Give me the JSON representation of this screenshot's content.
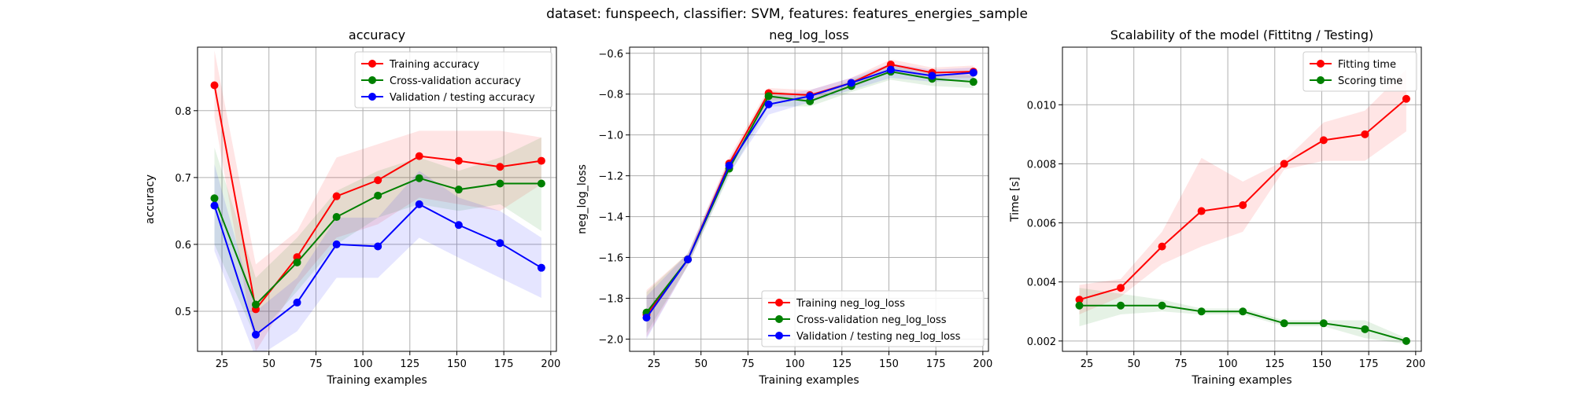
{
  "suptitle": "dataset: funspeech, classifier: SVM, features: features_energies_sample",
  "chart_data": [
    {
      "type": "line",
      "title": "accuracy",
      "xlabel": "Training examples",
      "ylabel": "accuracy",
      "xlim": [
        12,
        203
      ],
      "ylim": [
        0.44,
        0.895
      ],
      "xticks": [
        25,
        50,
        75,
        100,
        125,
        150,
        175,
        200
      ],
      "xtick_labels": [
        "25",
        "50",
        "75",
        "100",
        "125",
        "150",
        "175",
        "200"
      ],
      "yticks": [
        0.5,
        0.6,
        0.7,
        0.8
      ],
      "ytick_labels": [
        "0.5",
        "0.6",
        "0.7",
        "0.8"
      ],
      "grid": true,
      "legend_position": "upper-right",
      "x": [
        21,
        43,
        65,
        86,
        108,
        130,
        151,
        173,
        195
      ],
      "series": [
        {
          "name": "Training accuracy",
          "color": "#ff0000",
          "values": [
            0.838,
            0.503,
            0.581,
            0.672,
            0.696,
            0.732,
            0.725,
            0.716,
            0.725
          ],
          "lower": [
            0.79,
            0.44,
            0.54,
            0.61,
            0.63,
            0.67,
            0.66,
            0.65,
            0.69
          ],
          "upper": [
            0.89,
            0.57,
            0.62,
            0.73,
            0.75,
            0.77,
            0.77,
            0.77,
            0.76
          ]
        },
        {
          "name": "Cross-validation accuracy",
          "color": "#008000",
          "values": [
            0.669,
            0.51,
            0.573,
            0.641,
            0.673,
            0.699,
            0.682,
            0.691,
            0.691
          ],
          "lower": [
            0.6,
            0.46,
            0.53,
            0.6,
            0.64,
            0.66,
            0.65,
            0.66,
            0.62
          ],
          "upper": [
            0.745,
            0.55,
            0.61,
            0.68,
            0.71,
            0.73,
            0.71,
            0.73,
            0.76
          ]
        },
        {
          "name": "Validation / testing accuracy",
          "color": "#0000ff",
          "values": [
            0.658,
            0.465,
            0.513,
            0.6,
            0.597,
            0.66,
            0.629,
            0.602,
            0.565
          ],
          "lower": [
            0.59,
            0.43,
            0.47,
            0.55,
            0.55,
            0.61,
            0.58,
            0.55,
            0.52
          ],
          "upper": [
            0.72,
            0.5,
            0.55,
            0.64,
            0.64,
            0.71,
            0.67,
            0.65,
            0.61
          ]
        }
      ]
    },
    {
      "type": "line",
      "title": "neg_log_loss",
      "xlabel": "Training examples",
      "ylabel": "neg_log_loss",
      "xlim": [
        12,
        203
      ],
      "ylim": [
        -2.06,
        -0.57
      ],
      "xticks": [
        25,
        50,
        75,
        100,
        125,
        150,
        175,
        200
      ],
      "xtick_labels": [
        "25",
        "50",
        "75",
        "100",
        "125",
        "150",
        "175",
        "200"
      ],
      "yticks": [
        -2.0,
        -1.8,
        -1.6,
        -1.4,
        -1.2,
        -1.0,
        -0.8,
        -0.6
      ],
      "ytick_labels": [
        "−2.0",
        "−1.8",
        "−1.6",
        "−1.4",
        "−1.2",
        "−1.0",
        "−0.8",
        "−0.6"
      ],
      "grid": true,
      "legend_position": "lower-right",
      "x": [
        21,
        43,
        65,
        86,
        108,
        130,
        151,
        173,
        195
      ],
      "series": [
        {
          "name": "Training neg_log_loss",
          "color": "#ff0000",
          "values": [
            -1.88,
            -1.61,
            -1.14,
            -0.795,
            -0.805,
            -0.745,
            -0.655,
            -0.695,
            -0.69
          ],
          "lower": [
            -1.99,
            -1.64,
            -1.17,
            -0.83,
            -0.83,
            -0.77,
            -0.69,
            -0.72,
            -0.72
          ],
          "upper": [
            -1.76,
            -1.58,
            -1.11,
            -0.77,
            -0.78,
            -0.72,
            -0.63,
            -0.67,
            -0.66
          ]
        },
        {
          "name": "Cross-validation neg_log_loss",
          "color": "#008000",
          "values": [
            -1.87,
            -1.61,
            -1.165,
            -0.81,
            -0.835,
            -0.76,
            -0.69,
            -0.725,
            -0.74
          ],
          "lower": [
            -1.97,
            -1.64,
            -1.2,
            -0.86,
            -0.86,
            -0.79,
            -0.73,
            -0.76,
            -0.77
          ],
          "upper": [
            -1.77,
            -1.58,
            -1.13,
            -0.78,
            -0.81,
            -0.73,
            -0.66,
            -0.7,
            -0.71
          ]
        },
        {
          "name": "Validation / testing neg_log_loss",
          "color": "#0000ff",
          "values": [
            -1.895,
            -1.61,
            -1.15,
            -0.85,
            -0.81,
            -0.745,
            -0.68,
            -0.71,
            -0.695
          ],
          "lower": [
            -2.0,
            -1.64,
            -1.19,
            -0.9,
            -0.84,
            -0.78,
            -0.72,
            -0.74,
            -0.73
          ],
          "upper": [
            -1.79,
            -1.58,
            -1.12,
            -0.81,
            -0.78,
            -0.72,
            -0.65,
            -0.68,
            -0.67
          ]
        }
      ]
    },
    {
      "type": "line",
      "title": "Scalability of the model (Fittitng / Testing)",
      "xlabel": "Training examples",
      "ylabel": "Time [s]",
      "xlim": [
        12,
        203
      ],
      "ylim": [
        0.00165,
        0.01195
      ],
      "xticks": [
        25,
        50,
        75,
        100,
        125,
        150,
        175,
        200
      ],
      "xtick_labels": [
        "25",
        "50",
        "75",
        "100",
        "125",
        "150",
        "175",
        "200"
      ],
      "yticks": [
        0.002,
        0.004,
        0.006,
        0.008,
        0.01
      ],
      "ytick_labels": [
        "0.002",
        "0.004",
        "0.006",
        "0.008",
        "0.010"
      ],
      "grid": true,
      "legend_position": "upper-right",
      "x": [
        21,
        43,
        65,
        86,
        108,
        130,
        151,
        173,
        195
      ],
      "series": [
        {
          "name": "Fitting time",
          "color": "#ff0000",
          "values": [
            0.0034,
            0.0038,
            0.0052,
            0.0064,
            0.0066,
            0.008,
            0.0088,
            0.009,
            0.0102
          ],
          "lower": [
            0.0029,
            0.0035,
            0.0046,
            0.0052,
            0.0057,
            0.0078,
            0.0081,
            0.0081,
            0.0091
          ],
          "upper": [
            0.0039,
            0.0041,
            0.0057,
            0.0082,
            0.0074,
            0.0081,
            0.0094,
            0.0098,
            0.0112
          ]
        },
        {
          "name": "Scoring time",
          "color": "#008000",
          "values": [
            0.0032,
            0.0032,
            0.0032,
            0.003,
            0.003,
            0.0026,
            0.0026,
            0.0024,
            0.002
          ],
          "lower": [
            0.0025,
            0.0029,
            0.003,
            0.0029,
            0.0029,
            0.0025,
            0.0025,
            0.0021,
            0.0019
          ],
          "upper": [
            0.0038,
            0.0036,
            0.0034,
            0.0031,
            0.0031,
            0.0027,
            0.0027,
            0.0027,
            0.0021
          ]
        }
      ]
    }
  ]
}
